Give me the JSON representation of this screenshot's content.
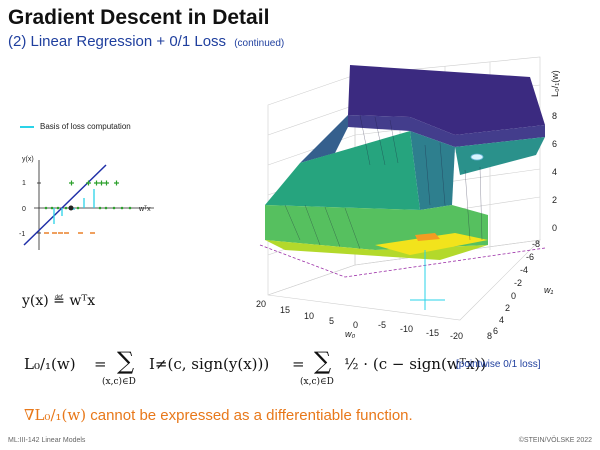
{
  "slide": {
    "title": "Gradient Descent in Detail",
    "subtitle": "(2) Linear Regression + 0/1 Loss",
    "subtitle_note": "(continued)"
  },
  "left_plot": {
    "legend": "Basis of loss computation",
    "y_label": "y(x)",
    "x_label": "wᵀx",
    "y_ticks": [
      "1",
      "0",
      "-1"
    ]
  },
  "formulas": {
    "model": "y(x) ≝ wᵀx",
    "loss_lhs": "L₀/₁(w)",
    "loss_eq": "=",
    "loss_sum1": "I≠(c, sign(y(x)))",
    "loss_sub1": "(x,c)∈D",
    "loss_eq2": "=",
    "loss_sum2": "½ · (c − sign(wᵀx))",
    "loss_sub2": "(x,c)∈D",
    "pointwise": "[pointwise 0/1 loss]"
  },
  "gradient_note": {
    "symbol": "∇L₀/₁(w)",
    "text": "cannot be expressed as a differentiable function."
  },
  "surface_plot": {
    "z_label": "L₀/₁(w)",
    "z_ticks": [
      "8",
      "6",
      "4",
      "2",
      "0"
    ],
    "w0_label": "w₀",
    "w0_ticks": [
      "20",
      "15",
      "10",
      "5",
      "0",
      "-5",
      "-10",
      "-15",
      "-20"
    ],
    "w1_label": "w₁",
    "w1_ticks": [
      "-8",
      "-6",
      "-4",
      "-2",
      "0",
      "2",
      "4",
      "6",
      "8"
    ]
  },
  "footer": {
    "left": "ML:III-142   Linear Models",
    "right": "©STEIN/VÖLSKE 2022"
  },
  "colors": {
    "title": "#111111",
    "subtitle": "#1f3f9e",
    "gradient_note": "#e8781a",
    "basis_line": "#2ad3e8",
    "pos_points": "#2ca02c",
    "neg_points": "#e8781a",
    "regression_line": "#1f2fa8"
  }
}
